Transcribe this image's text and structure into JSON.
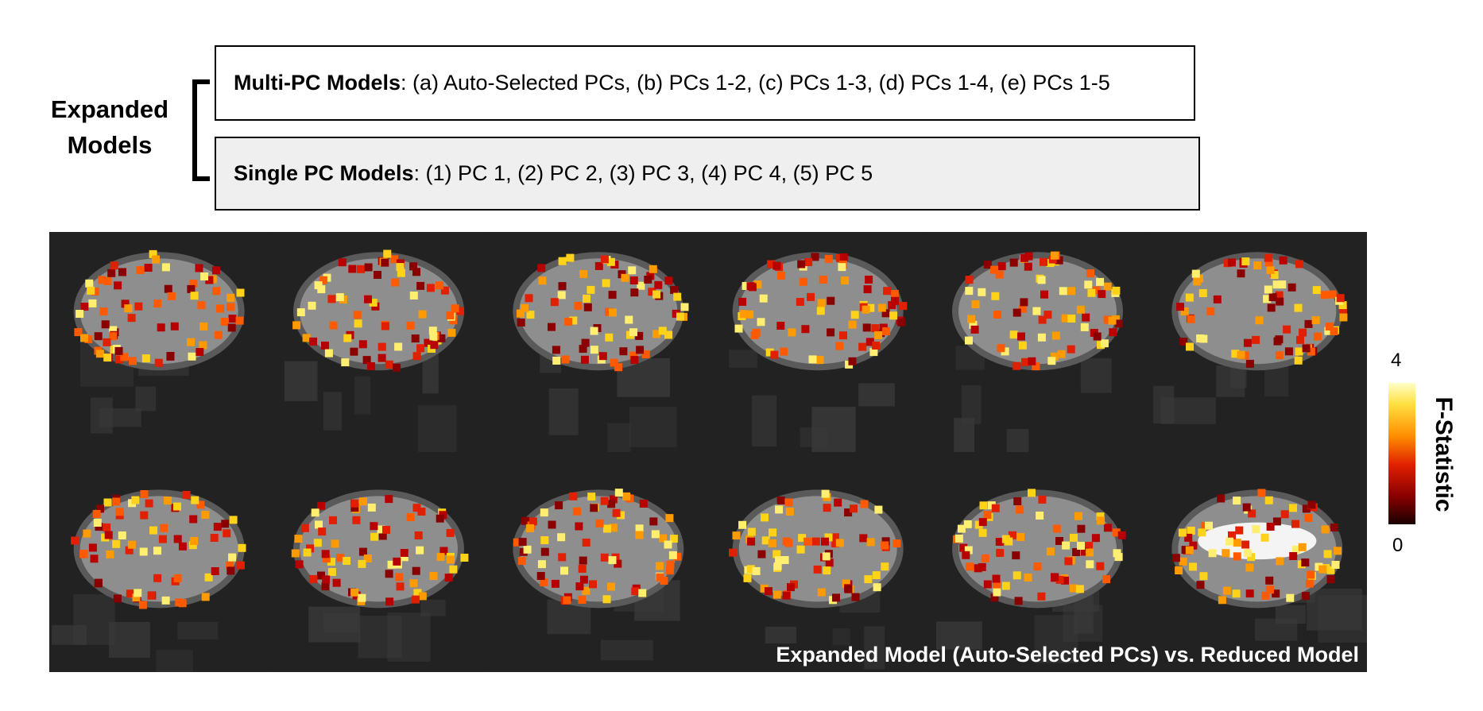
{
  "models": {
    "group_label_line1": "Expanded",
    "group_label_line2": "Models",
    "multi": {
      "title": "Multi-PC Models",
      "items": ": (a) Auto-Selected PCs, (b) PCs 1-2, (c) PCs 1-3, (d) PCs 1-4, (e) PCs 1-5"
    },
    "single": {
      "title": "Single PC Models",
      "items": ": (1) PC 1, (2) PC 2, (3) PC 3, (4) PC 4, (5) PC 5"
    }
  },
  "panel": {
    "caption": "Expanded Model (Auto-Selected PCs) vs. Reduced Model",
    "rows": 2,
    "columns": 6
  },
  "colorbar": {
    "title": "F-Statistic",
    "max_label": "4",
    "min_label": "0",
    "colors": [
      "#1a0000",
      "#8a0000",
      "#e02000",
      "#ff8c00",
      "#ffe040",
      "#ffffc8"
    ]
  }
}
